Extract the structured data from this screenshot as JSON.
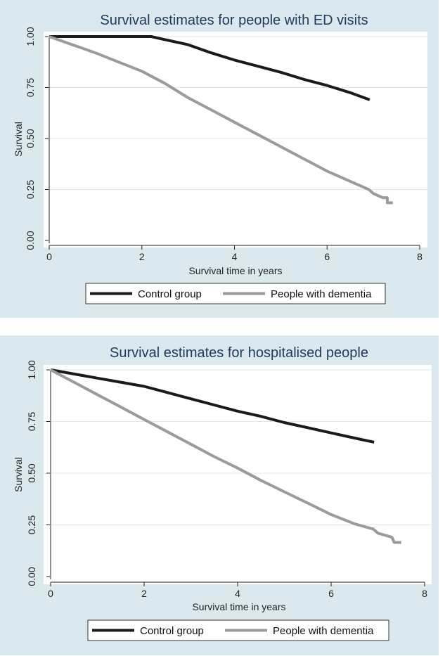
{
  "chart_data": [
    {
      "type": "line",
      "title": "Survival estimates for people with ED visits",
      "xlabel": "Survival time in years",
      "ylabel": "Survival",
      "xlim": [
        0,
        8
      ],
      "ylim": [
        0,
        1
      ],
      "xticks": [
        0,
        2,
        4,
        6,
        8
      ],
      "yticks": [
        0,
        0.25,
        0.5,
        0.75,
        1.0
      ],
      "xtick_labels": [
        "0",
        "2",
        "4",
        "6",
        "8"
      ],
      "ytick_labels": [
        "0.00",
        "0.25",
        "0.50",
        "0.75",
        "1.00"
      ],
      "grid": true,
      "legend_position": "bottom",
      "series": [
        {
          "name": "Control group",
          "color": "#1a1a1a",
          "points": [
            [
              0,
              1.0
            ],
            [
              2.2,
              1.0
            ],
            [
              2.4,
              0.99
            ],
            [
              3.0,
              0.96
            ],
            [
              3.5,
              0.92
            ],
            [
              4.0,
              0.885
            ],
            [
              4.5,
              0.855
            ],
            [
              5.0,
              0.825
            ],
            [
              5.5,
              0.79
            ],
            [
              6.0,
              0.76
            ],
            [
              6.5,
              0.725
            ],
            [
              6.92,
              0.69
            ]
          ]
        },
        {
          "name": "People with dementia",
          "color": "#9b9b9b",
          "points": [
            [
              0,
              1.0
            ],
            [
              0.5,
              0.96
            ],
            [
              1.0,
              0.92
            ],
            [
              1.5,
              0.875
            ],
            [
              2.0,
              0.83
            ],
            [
              2.5,
              0.77
            ],
            [
              3.0,
              0.7
            ],
            [
              3.5,
              0.64
            ],
            [
              4.0,
              0.58
            ],
            [
              4.5,
              0.52
            ],
            [
              5.0,
              0.46
            ],
            [
              5.5,
              0.4
            ],
            [
              6.0,
              0.34
            ],
            [
              6.5,
              0.29
            ],
            [
              6.9,
              0.25
            ],
            [
              7.0,
              0.23
            ],
            [
              7.1,
              0.22
            ],
            [
              7.2,
              0.21
            ],
            [
              7.3,
              0.21
            ],
            [
              7.3,
              0.185
            ],
            [
              7.42,
              0.185
            ]
          ]
        }
      ]
    },
    {
      "type": "line",
      "title": "Survival estimates for hospitalised people",
      "xlabel": "Survival time in years",
      "ylabel": "Survival",
      "xlim": [
        0,
        8
      ],
      "ylim": [
        0,
        1
      ],
      "xticks": [
        0,
        2,
        4,
        6,
        8
      ],
      "yticks": [
        0,
        0.25,
        0.5,
        0.75,
        1.0
      ],
      "xtick_labels": [
        "0",
        "2",
        "4",
        "6",
        "8"
      ],
      "ytick_labels": [
        "0.00",
        "0.25",
        "0.50",
        "0.75",
        "1.00"
      ],
      "grid": true,
      "legend_position": "bottom",
      "series": [
        {
          "name": "Control group",
          "color": "#1a1a1a",
          "points": [
            [
              0,
              1.0
            ],
            [
              0.5,
              0.98
            ],
            [
              1.0,
              0.96
            ],
            [
              1.5,
              0.94
            ],
            [
              2.0,
              0.92
            ],
            [
              2.5,
              0.89
            ],
            [
              3.0,
              0.86
            ],
            [
              3.5,
              0.83
            ],
            [
              4.0,
              0.8
            ],
            [
              4.5,
              0.775
            ],
            [
              5.0,
              0.745
            ],
            [
              5.5,
              0.72
            ],
            [
              6.0,
              0.695
            ],
            [
              6.5,
              0.67
            ],
            [
              6.92,
              0.65
            ]
          ]
        },
        {
          "name": "People with dementia",
          "color": "#9b9b9b",
          "points": [
            [
              0,
              1.0
            ],
            [
              0.5,
              0.94
            ],
            [
              1.0,
              0.88
            ],
            [
              1.5,
              0.82
            ],
            [
              2.0,
              0.76
            ],
            [
              2.5,
              0.7
            ],
            [
              3.0,
              0.64
            ],
            [
              3.5,
              0.58
            ],
            [
              4.0,
              0.525
            ],
            [
              4.5,
              0.465
            ],
            [
              5.0,
              0.41
            ],
            [
              5.5,
              0.355
            ],
            [
              6.0,
              0.3
            ],
            [
              6.5,
              0.255
            ],
            [
              6.9,
              0.23
            ],
            [
              7.0,
              0.21
            ],
            [
              7.15,
              0.2
            ],
            [
              7.3,
              0.19
            ],
            [
              7.35,
              0.165
            ],
            [
              7.5,
              0.165
            ]
          ]
        }
      ]
    }
  ]
}
